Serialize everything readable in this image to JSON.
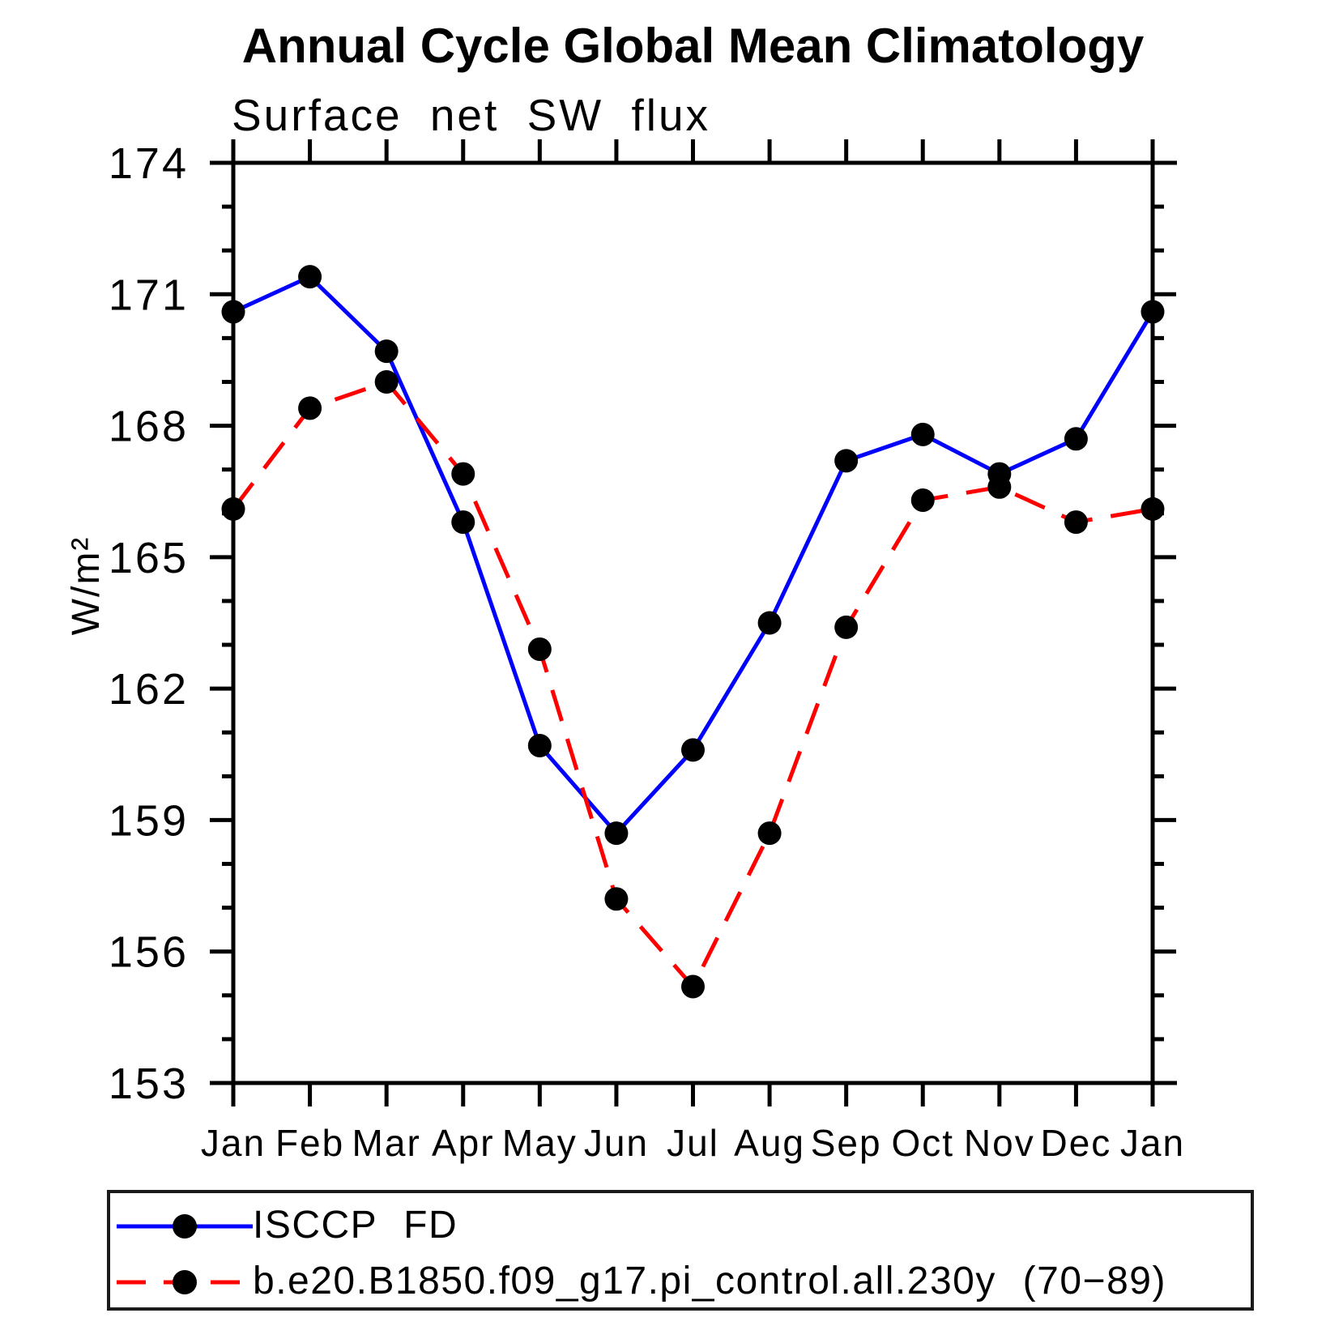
{
  "title": "Annual Cycle Global Mean Climatology",
  "subtitle": "Surface net SW flux",
  "ylabel": "W/m²",
  "legend": {
    "position": "bottom",
    "entries": [
      {
        "label": "ISCCP FD",
        "color": "#0000ff",
        "line_style": "solid",
        "marker": "circle",
        "marker_color": "#000000"
      },
      {
        "label": "b.e20.B1850.f09_g17.pi_control.all.230y (70−89)",
        "color": "#ff0000",
        "line_style": "dashed",
        "marker": "circle",
        "marker_color": "#000000"
      }
    ]
  },
  "chart_data": {
    "type": "line",
    "categories": [
      "Jan",
      "Feb",
      "Mar",
      "Apr",
      "May",
      "Jun",
      "Jul",
      "Aug",
      "Sep",
      "Oct",
      "Nov",
      "Dec",
      "Jan"
    ],
    "series": [
      {
        "name": "ISCCP FD",
        "color": "#0000ff",
        "line_style": "solid",
        "marker": "circle",
        "marker_color": "#000000",
        "values": [
          170.6,
          171.4,
          169.7,
          165.8,
          160.7,
          158.7,
          160.6,
          163.5,
          167.2,
          167.8,
          166.9,
          167.7,
          170.6
        ]
      },
      {
        "name": "b.e20.B1850.f09_g17.pi_control.all.230y (70-89)",
        "color": "#ff0000",
        "line_style": "dashed",
        "marker": "circle",
        "marker_color": "#000000",
        "values": [
          166.1,
          168.4,
          169.0,
          166.9,
          162.9,
          157.2,
          155.2,
          158.7,
          163.4,
          166.3,
          166.6,
          165.8,
          166.1
        ]
      }
    ],
    "xlabel": "",
    "ylabel": "W/m²",
    "ylim": [
      153,
      174
    ],
    "y_major_ticks": [
      153,
      156,
      159,
      162,
      165,
      168,
      171,
      174
    ],
    "y_minor_step": 1,
    "grid": false,
    "frame_color": "#000000",
    "tick_style": "outward",
    "legend_position": "bottom"
  }
}
